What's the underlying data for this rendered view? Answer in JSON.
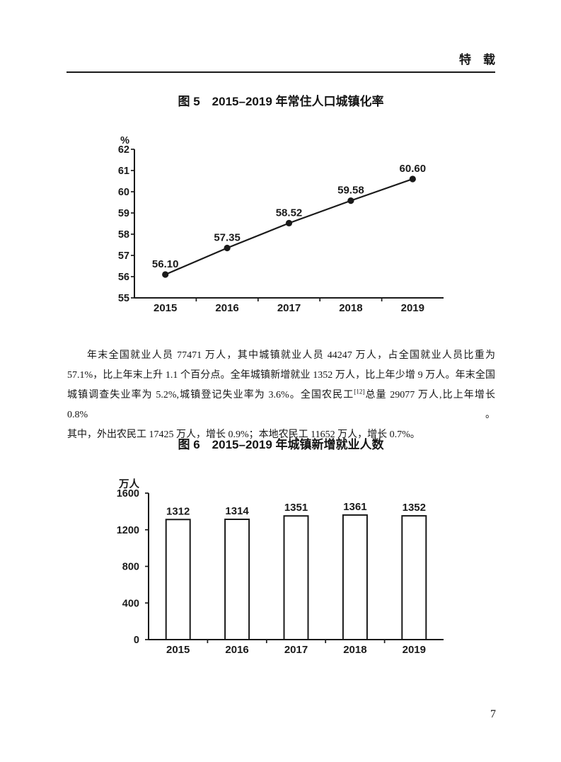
{
  "header": {
    "title": "特　载"
  },
  "paragraph": {
    "line1": "年末全国就业人员 77471 万人，其中城镇就业人员 44247 万人，占全国就业人员比重为",
    "line2": "57.1%，比上年末上升 1.1 个百分点。全年城镇新增就业 1352 万人，比上年少增 9 万人。年末全国",
    "line3_before": "城镇调查失业率为 5.2%,城镇登记失业率为 3.6%。全国农民工",
    "line3_sup": "[12]",
    "line3_after": "总量 29077 万人,比上年增长 0.8%。",
    "line4": "其中，外出农民工 17425 万人，增长 0.9%；本地农民工 11652 万人，增长 0.7%。"
  },
  "page_number": "7",
  "chart_data": [
    {
      "id": "figure5",
      "type": "line",
      "title": "图 5　2015–2019 年常住人口城镇化率",
      "ylabel": "%",
      "xlabel": "",
      "categories": [
        "2015",
        "2016",
        "2017",
        "2018",
        "2019"
      ],
      "values": [
        56.1,
        57.35,
        58.52,
        59.58,
        60.6
      ],
      "value_labels": [
        "56.10",
        "57.35",
        "58.52",
        "59.58",
        "60.60"
      ],
      "ylim": [
        55,
        62
      ],
      "yticks": [
        55,
        56,
        57,
        58,
        59,
        60,
        61,
        62
      ],
      "grid": false,
      "legend": false,
      "marker": "filled-circle",
      "line_color": "#1a1a1a"
    },
    {
      "id": "figure6",
      "type": "bar",
      "title": "图 6　2015–2019 年城镇新增就业人数",
      "ylabel": "万人",
      "xlabel": "",
      "categories": [
        "2015",
        "2016",
        "2017",
        "2018",
        "2019"
      ],
      "values": [
        1312,
        1314,
        1351,
        1361,
        1352
      ],
      "value_labels": [
        "1312",
        "1314",
        "1351",
        "1361",
        "1352"
      ],
      "ylim": [
        0,
        1600
      ],
      "yticks": [
        0,
        400,
        800,
        1200,
        1600
      ],
      "grid": false,
      "legend": false,
      "bar_fill": "#ffffff",
      "bar_border": "#1a1a1a"
    }
  ]
}
